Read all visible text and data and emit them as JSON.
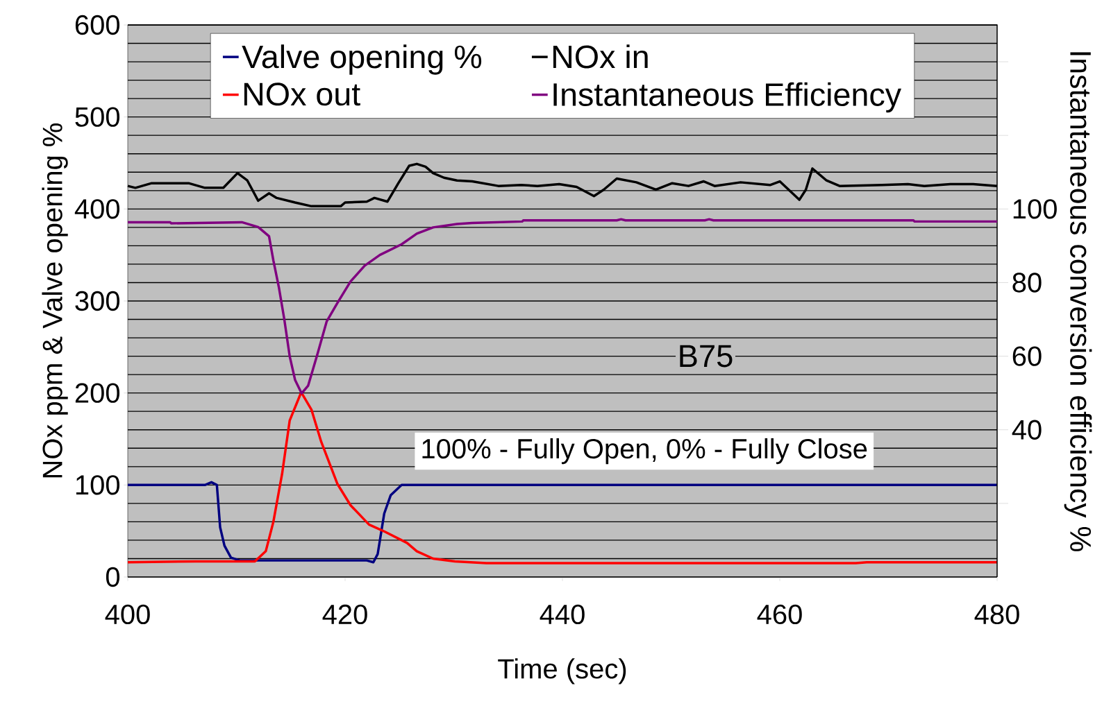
{
  "chart_data": {
    "type": "line",
    "xlabel": "Time (sec)",
    "ylabel": "NOx ppm & Valve opening %",
    "y2label": "Instantaneous conversion efficiency %",
    "xlim": [
      400,
      480
    ],
    "xticks": [
      400,
      420,
      440,
      460,
      480
    ],
    "ylim": [
      0,
      600
    ],
    "yticks": [
      0,
      100,
      200,
      300,
      400,
      500,
      600
    ],
    "y2lim": [
      0,
      150
    ],
    "y2ticks": [
      {
        "value": 20,
        "label": null
      },
      40,
      60,
      80,
      100,
      {
        "value": 120,
        "label": null
      },
      {
        "value": 140,
        "label": null
      }
    ],
    "grid": "y",
    "legend": "top",
    "annotations": [
      "B75",
      "100% - Fully Open, 0% - Fully Close"
    ],
    "series": [
      {
        "name": "Valve opening %",
        "color": "#000080",
        "x": [
          400,
          407.1,
          407.7,
          408.2,
          408.5,
          408.9,
          409.5,
          410.3,
          422.0,
          422.6,
          423.0,
          423.6,
          424.2,
          425.2,
          480
        ],
        "values": [
          100,
          100,
          103,
          100,
          54,
          34,
          21,
          18,
          18,
          16,
          25,
          69,
          89,
          100,
          100
        ]
      },
      {
        "name": "NOx in",
        "color": "#000000",
        "x": [
          400,
          400.7,
          402.2,
          405.6,
          407.1,
          408.8,
          410.1,
          411.0,
          412.0,
          413.0,
          413.7,
          415.4,
          416.9,
          419.6,
          420.0,
          422.0,
          422.7,
          423.9,
          424.9,
          425.9,
          426.6,
          427.4,
          428.1,
          429.1,
          430.3,
          431.7,
          434.1,
          436.2,
          437.7,
          439.7,
          441.3,
          442.9,
          443.8,
          445.0,
          446.8,
          448.6,
          450.1,
          451.6,
          453.0,
          454.0,
          456.4,
          459.1,
          460.0,
          461.8,
          462.4,
          463.0,
          464.3,
          465.5,
          469.4,
          471.8,
          473.3,
          475.7,
          477.8,
          480
        ],
        "values": [
          425,
          423,
          428,
          428,
          423,
          423,
          439,
          431,
          409,
          417,
          412,
          407,
          403,
          403,
          407,
          408,
          412,
          408,
          428,
          447,
          449,
          446,
          439,
          434,
          431,
          430,
          425,
          426,
          425,
          427,
          424,
          414,
          421,
          433,
          429,
          421,
          428,
          425,
          430,
          425,
          429,
          426,
          430,
          410,
          421,
          444,
          431,
          425,
          426,
          427,
          425,
          427,
          427,
          425
        ]
      },
      {
        "name": "NOx out",
        "color": "#ff0000",
        "x": [
          400,
          406.3,
          411.7,
          412.7,
          413.4,
          414.2,
          414.9,
          415.9,
          416.0,
          416.9,
          417.8,
          419.3,
          420.5,
          422.2,
          423.7,
          425.7,
          426.6,
          428.1,
          430.1,
          433,
          467,
          468,
          480
        ],
        "values": [
          16,
          17,
          17,
          28,
          60,
          112,
          170,
          199,
          200,
          182,
          147,
          101,
          78,
          57,
          49,
          37,
          28,
          20,
          17,
          15,
          15,
          16,
          16
        ]
      },
      {
        "name": "Instantaneous Efficiency",
        "color": "#800080",
        "axis": "y2",
        "x": [
          400,
          403.9,
          404.0,
          410.5,
          412.0,
          413.0,
          413.4,
          413.9,
          414.4,
          414.9,
          415.4,
          416.0,
          416.6,
          417.4,
          418.3,
          419.3,
          420.5,
          421.8,
          423.2,
          425.2,
          426.6,
          428.1,
          430.3,
          431.7,
          436.3,
          436.4,
          445.0,
          445.4,
          445.8,
          453.1,
          453.5,
          453.9,
          472.3,
          472.4,
          480
        ],
        "values": [
          96.4,
          96.4,
          96.1,
          96.4,
          95.1,
          92.6,
          86,
          78.8,
          70.1,
          60,
          53.5,
          49.9,
          52,
          60,
          69.4,
          74.5,
          80.3,
          84.6,
          87.5,
          90.4,
          93.3,
          95,
          95.9,
          96.2,
          96.6,
          96.9,
          96.9,
          97.2,
          96.9,
          96.9,
          97.2,
          96.9,
          96.9,
          96.6,
          96.6
        ]
      }
    ]
  }
}
